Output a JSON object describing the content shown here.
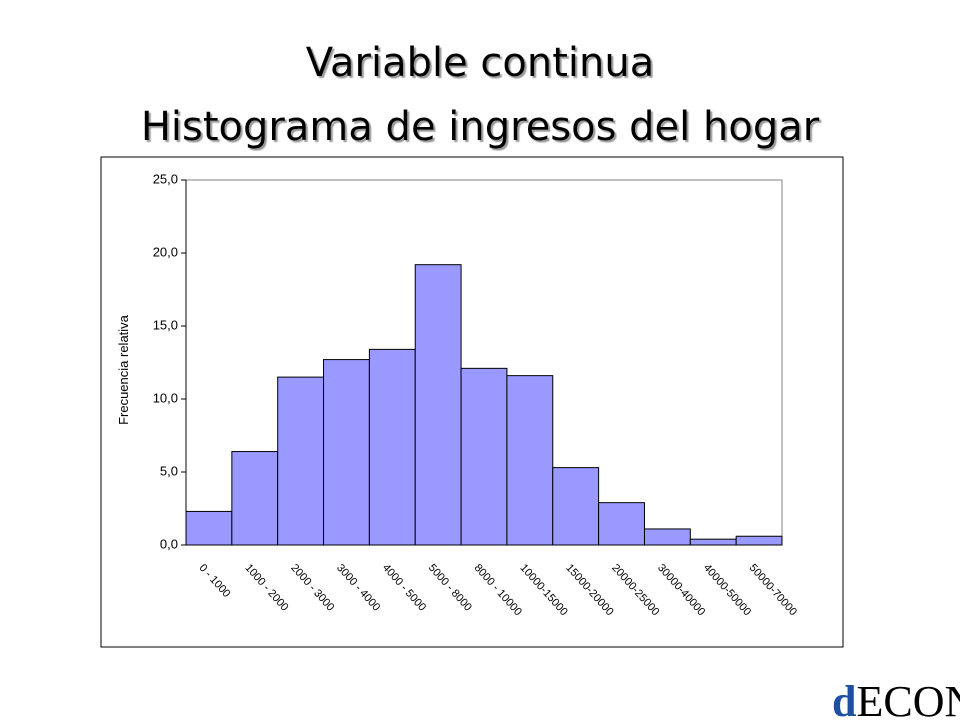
{
  "title_lines": [
    "Variable continua",
    "Histograma de ingresos del hogar"
  ],
  "logo": [
    "d",
    "ECON"
  ],
  "chart_data": {
    "type": "bar",
    "y_label": "Frecuencia relativa",
    "categories": [
      "0 - 1000",
      "1000 - 2000",
      "2000 - 3000",
      "3000 - 4000",
      "4000 - 5000",
      "5000 - 8000",
      "8000 - 10000",
      "10000-15000",
      "15000-20000",
      "20000-25000",
      "30000-40000",
      "40000-50000",
      "50000-70000"
    ],
    "values": [
      2.3,
      6.4,
      11.5,
      12.7,
      13.4,
      19.2,
      12.1,
      11.6,
      5.3,
      2.9,
      1.1,
      0.4,
      0.6
    ],
    "color": "#9999ff",
    "ylim": [
      0,
      25
    ],
    "yticks": [
      {
        "value": 0,
        "label": "0,0"
      },
      {
        "value": 5,
        "label": "5,0"
      },
      {
        "value": 10,
        "label": "10,0"
      },
      {
        "value": 15,
        "label": "15,0"
      },
      {
        "value": 20,
        "label": "20,0"
      },
      {
        "value": 25,
        "label": "25,0"
      }
    ],
    "grid": false
  }
}
